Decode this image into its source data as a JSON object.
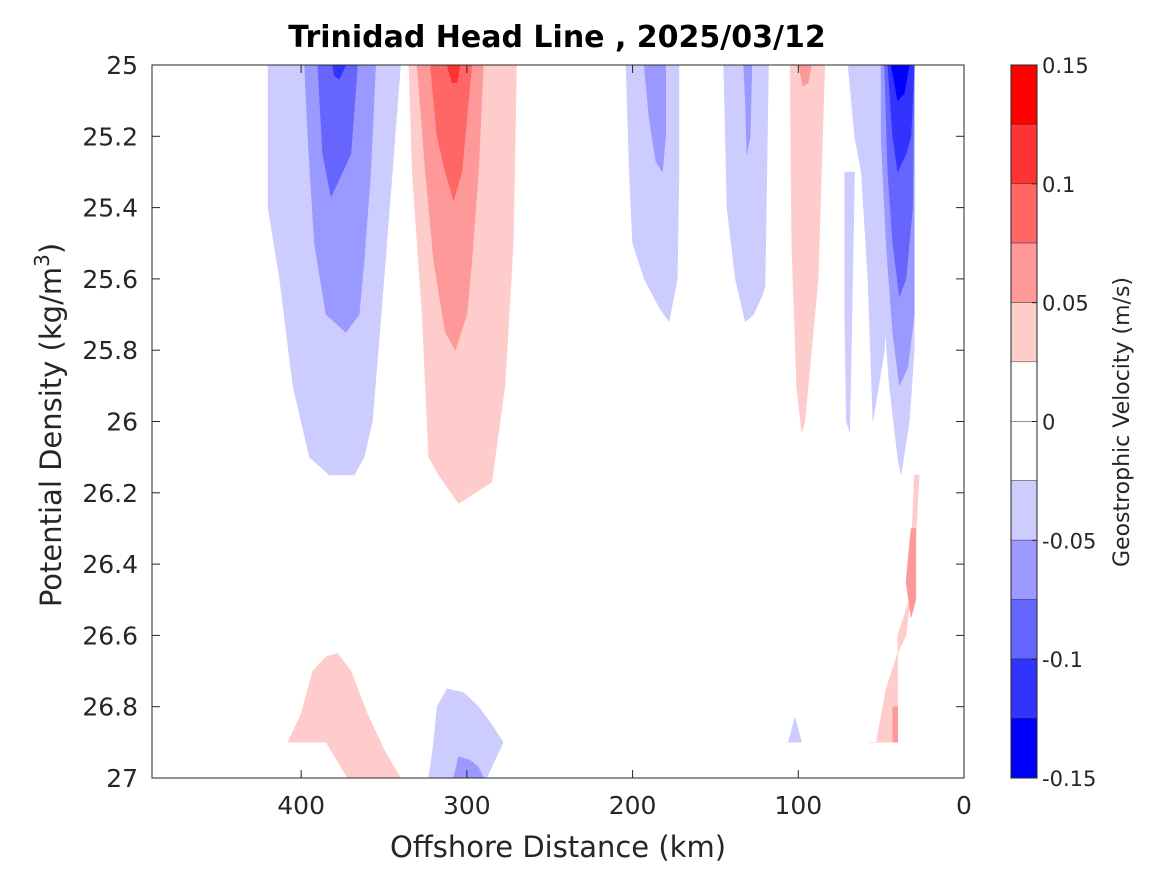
{
  "chart_data": {
    "type": "contour",
    "title": "Trinidad Head Line , 2025/03/12",
    "xlabel": "Offshore Distance (km)",
    "ylabel": "Potential Density (kg/m",
    "ylabel_sup": "3",
    "ylabel_suffix": ")",
    "xlim": [
      490,
      0
    ],
    "ylim": [
      25,
      27
    ],
    "x_reversed": true,
    "y_reversed": true,
    "xticks": [
      400,
      300,
      200,
      100,
      0
    ],
    "xtick_labels": [
      "400",
      "300",
      "200",
      "100",
      "0"
    ],
    "yticks": [
      25,
      25.2,
      25.4,
      25.6,
      25.8,
      26,
      26.2,
      26.4,
      26.6,
      26.8,
      27
    ],
    "ytick_labels": [
      "25",
      "25.2",
      "25.4",
      "25.6",
      "25.8",
      "26",
      "26.2",
      "26.4",
      "26.6",
      "26.8",
      "27"
    ],
    "colorbar": {
      "label": "Geostrophic Velocity (m/s)",
      "range": [
        -0.15,
        0.15
      ],
      "ticks": [
        0.15,
        0.1,
        0.05,
        0,
        -0.05,
        -0.1,
        -0.15
      ],
      "tick_labels": [
        "0.15",
        "0.1",
        "0.05",
        "0",
        "-0.05",
        "-0.1",
        "-0.15"
      ],
      "levels": [
        {
          "min": 0.125,
          "max": 0.15,
          "color": "#ff0000"
        },
        {
          "min": 0.1,
          "max": 0.125,
          "color": "#ff3333"
        },
        {
          "min": 0.075,
          "max": 0.1,
          "color": "#ff6666"
        },
        {
          "min": 0.05,
          "max": 0.075,
          "color": "#ff9999"
        },
        {
          "min": 0.025,
          "max": 0.05,
          "color": "#ffcccc"
        },
        {
          "min": 0,
          "max": 0.025,
          "color": "#ffffff"
        },
        {
          "min": -0.025,
          "max": 0,
          "color": "#ffffff"
        },
        {
          "min": -0.05,
          "max": -0.025,
          "color": "#ccccff"
        },
        {
          "min": -0.075,
          "max": -0.05,
          "color": "#9999ff"
        },
        {
          "min": -0.1,
          "max": -0.075,
          "color": "#6666ff"
        },
        {
          "min": -0.125,
          "max": -0.1,
          "color": "#3333ff"
        },
        {
          "min": -0.15,
          "max": -0.125,
          "color": "#0000ff"
        }
      ]
    },
    "regions": [
      {
        "name": "offshore-jet-negative-l1",
        "level": -0.05,
        "color": "#ccccff",
        "points": [
          [
            420,
            25
          ],
          [
            340,
            25
          ],
          [
            345,
            25.3
          ],
          [
            350,
            25.6
          ],
          [
            357,
            26
          ],
          [
            362,
            26.1
          ],
          [
            368,
            26.15
          ],
          [
            383,
            26.15
          ],
          [
            395,
            26.1
          ],
          [
            405,
            25.9
          ],
          [
            413,
            25.6
          ],
          [
            420,
            25.4
          ]
        ]
      },
      {
        "name": "offshore-jet-negative-l2",
        "level": -0.075,
        "color": "#9999ff",
        "points": [
          [
            398,
            25
          ],
          [
            355,
            25
          ],
          [
            358,
            25.3
          ],
          [
            362,
            25.55
          ],
          [
            365,
            25.7
          ],
          [
            373,
            25.75
          ],
          [
            385,
            25.7
          ],
          [
            392,
            25.5
          ],
          [
            396,
            25.2
          ]
        ]
      },
      {
        "name": "offshore-jet-negative-l3",
        "level": -0.1,
        "color": "#6666ff",
        "points": [
          [
            390,
            25
          ],
          [
            366,
            25
          ],
          [
            370,
            25.25
          ],
          [
            375,
            25.3
          ],
          [
            382,
            25.37
          ],
          [
            387,
            25.25
          ]
        ]
      },
      {
        "name": "offshore-jet-negative-l4",
        "level": -0.125,
        "color": "#3333ff",
        "points": [
          [
            381,
            25
          ],
          [
            373,
            25
          ],
          [
            377,
            25.04
          ],
          [
            380,
            25.03
          ]
        ]
      },
      {
        "name": "jet-positive-l1",
        "level": 0.05,
        "color": "#ffcccc",
        "points": [
          [
            335,
            25
          ],
          [
            270,
            25
          ],
          [
            272,
            25.5
          ],
          [
            277,
            25.9
          ],
          [
            285,
            26.17
          ],
          [
            295,
            26.2
          ],
          [
            305,
            26.23
          ],
          [
            317,
            26.15
          ],
          [
            323,
            26.1
          ],
          [
            327,
            25.7
          ],
          [
            333,
            25.3
          ]
        ]
      },
      {
        "name": "jet-positive-l2",
        "level": 0.075,
        "color": "#ff9999",
        "points": [
          [
            330,
            25
          ],
          [
            290,
            25
          ],
          [
            293,
            25.3
          ],
          [
            297,
            25.55
          ],
          [
            300,
            25.7
          ],
          [
            307,
            25.8
          ],
          [
            313,
            25.75
          ],
          [
            320,
            25.55
          ],
          [
            325,
            25.3
          ]
        ]
      },
      {
        "name": "jet-positive-l3",
        "level": 0.1,
        "color": "#ff6666",
        "points": [
          [
            322,
            25
          ],
          [
            297,
            25
          ],
          [
            300,
            25.15
          ],
          [
            303,
            25.3
          ],
          [
            308,
            25.38
          ],
          [
            313,
            25.3
          ],
          [
            318,
            25.2
          ]
        ]
      },
      {
        "name": "jet-positive-l4",
        "level": 0.125,
        "color": "#ff3333",
        "points": [
          [
            312,
            25
          ],
          [
            304,
            25
          ],
          [
            306,
            25.05
          ],
          [
            309,
            25.05
          ]
        ]
      },
      {
        "name": "mid-negative-l1",
        "level": -0.05,
        "color": "#ccccff",
        "points": [
          [
            204,
            25
          ],
          [
            172,
            25
          ],
          [
            172,
            25.3
          ],
          [
            173,
            25.6
          ],
          [
            178,
            25.72
          ],
          [
            184,
            25.68
          ],
          [
            193,
            25.6
          ],
          [
            200,
            25.5
          ],
          [
            202,
            25.3
          ]
        ]
      },
      {
        "name": "mid-negative-l2",
        "level": -0.075,
        "color": "#9999ff",
        "points": [
          [
            193,
            25
          ],
          [
            180,
            25
          ],
          [
            180,
            25.2
          ],
          [
            182,
            25.3
          ],
          [
            186,
            25.27
          ],
          [
            190,
            25.15
          ]
        ]
      },
      {
        "name": "inner-negative-l1",
        "level": -0.05,
        "color": "#ccccff",
        "points": [
          [
            145,
            25
          ],
          [
            118,
            25
          ],
          [
            120,
            25.62
          ],
          [
            122,
            25.65
          ],
          [
            127,
            25.7
          ],
          [
            132,
            25.72
          ],
          [
            138,
            25.6
          ],
          [
            143,
            25.4
          ]
        ]
      },
      {
        "name": "inner-negative-l2",
        "level": -0.075,
        "color": "#9999ff",
        "points": [
          [
            133,
            25
          ],
          [
            128,
            25
          ],
          [
            129,
            25.2
          ],
          [
            131,
            25.25
          ],
          [
            132,
            25.1
          ]
        ]
      },
      {
        "name": "shelf-positive-l1",
        "level": 0.05,
        "color": "#ffcccc",
        "points": [
          [
            105,
            25
          ],
          [
            84,
            25
          ],
          [
            86,
            25.3
          ],
          [
            88,
            25.6
          ],
          [
            92,
            25.8
          ],
          [
            96,
            26
          ],
          [
            98,
            26.03
          ],
          [
            101,
            25.9
          ],
          [
            104,
            25.5
          ]
        ]
      },
      {
        "name": "shelf-positive-l2",
        "level": 0.075,
        "color": "#ff9999",
        "points": [
          [
            100,
            25
          ],
          [
            92,
            25
          ],
          [
            94,
            25.05
          ],
          [
            97,
            25.06
          ]
        ]
      },
      {
        "name": "nearshore-negative-l1a",
        "level": -0.05,
        "color": "#ccccff",
        "points": [
          [
            70,
            25
          ],
          [
            42,
            25
          ],
          [
            45,
            25.3
          ],
          [
            48,
            25.8
          ],
          [
            55,
            26
          ],
          [
            58,
            25.6
          ],
          [
            62,
            25.3
          ],
          [
            66,
            25.2
          ]
        ]
      },
      {
        "name": "nearshore-negative-l1b",
        "level": -0.05,
        "color": "#ccccff",
        "points": [
          [
            72,
            25.3
          ],
          [
            66,
            25.3
          ],
          [
            68,
            25.8
          ],
          [
            69,
            26.03
          ],
          [
            71,
            26.0
          ],
          [
            72,
            25.7
          ]
        ]
      },
      {
        "name": "nearshore-negative-l1c",
        "level": -0.05,
        "color": "#ccccff",
        "points": [
          [
            52,
            25
          ],
          [
            30,
            25
          ],
          [
            30,
            25.8
          ],
          [
            33,
            26.0
          ],
          [
            38,
            26.15
          ],
          [
            40,
            26.1
          ],
          [
            45,
            25.9
          ],
          [
            50,
            25.6
          ],
          [
            52,
            25.2
          ]
        ]
      },
      {
        "name": "nearshore-negative-l2",
        "level": -0.075,
        "color": "#9999ff",
        "points": [
          [
            50,
            25
          ],
          [
            30,
            25
          ],
          [
            30,
            25.7
          ],
          [
            34,
            25.85
          ],
          [
            39,
            25.9
          ],
          [
            43,
            25.75
          ],
          [
            47,
            25.5
          ],
          [
            50,
            25.2
          ]
        ]
      },
      {
        "name": "nearshore-negative-l3",
        "level": -0.1,
        "color": "#6666ff",
        "points": [
          [
            48,
            25
          ],
          [
            30,
            25
          ],
          [
            31,
            25.4
          ],
          [
            35,
            25.6
          ],
          [
            39,
            25.65
          ],
          [
            43,
            25.5
          ],
          [
            46,
            25.3
          ]
        ]
      },
      {
        "name": "nearshore-negative-l4",
        "level": -0.125,
        "color": "#3333ff",
        "points": [
          [
            46,
            25
          ],
          [
            30,
            25
          ],
          [
            32,
            25.2
          ],
          [
            35,
            25.25
          ],
          [
            40,
            25.3
          ],
          [
            43,
            25.2
          ]
        ]
      },
      {
        "name": "nearshore-negative-l5",
        "level": -0.15,
        "color": "#0000ff",
        "points": [
          [
            44,
            25
          ],
          [
            33,
            25
          ],
          [
            36,
            25.08
          ],
          [
            40,
            25.1
          ],
          [
            42,
            25.05
          ]
        ]
      },
      {
        "name": "deep-coastal-positive-l1",
        "level": 0.05,
        "color": "#ffcccc",
        "points": [
          [
            30,
            26.15
          ],
          [
            27,
            26.15
          ],
          [
            30,
            26.4
          ],
          [
            35,
            26.6
          ],
          [
            40,
            26.65
          ],
          [
            47,
            26.75
          ],
          [
            53,
            26.9
          ],
          [
            57,
            26.9
          ],
          [
            40,
            26.9
          ],
          [
            40,
            26.6
          ],
          [
            33,
            26.5
          ]
        ]
      },
      {
        "name": "deep-coastal-positive-l2",
        "level": 0.075,
        "color": "#ff9999",
        "points": [
          [
            32,
            26.3
          ],
          [
            29,
            26.3
          ],
          [
            29,
            26.5
          ],
          [
            32,
            26.55
          ],
          [
            35,
            26.45
          ]
        ]
      },
      {
        "name": "deep-coastal-positive-l3",
        "level": 0.075,
        "color": "#ff9999",
        "points": [
          [
            43,
            26.8
          ],
          [
            40,
            26.8
          ],
          [
            40,
            26.9
          ],
          [
            43,
            26.9
          ]
        ]
      },
      {
        "name": "deep-offshore-positive-l1",
        "level": 0.05,
        "color": "#ffcccc",
        "points": [
          [
            408,
            26.9
          ],
          [
            400,
            26.82
          ],
          [
            393,
            26.7
          ],
          [
            385,
            26.66
          ],
          [
            378,
            26.65
          ],
          [
            370,
            26.7
          ],
          [
            360,
            26.82
          ],
          [
            350,
            26.92
          ],
          [
            340,
            27
          ],
          [
            372,
            27
          ],
          [
            385,
            26.9
          ]
        ]
      },
      {
        "name": "deep-mid-negative-l1",
        "level": -0.05,
        "color": "#ccccff",
        "points": [
          [
            323,
            27
          ],
          [
            320,
            26.9
          ],
          [
            318,
            26.8
          ],
          [
            312,
            26.75
          ],
          [
            302,
            26.76
          ],
          [
            293,
            26.8
          ],
          [
            285,
            26.85
          ],
          [
            278,
            26.9
          ],
          [
            288,
            27
          ]
        ]
      },
      {
        "name": "deep-mid-negative-l2",
        "level": -0.075,
        "color": "#9999ff",
        "points": [
          [
            308,
            27
          ],
          [
            305,
            26.94
          ],
          [
            298,
            26.95
          ],
          [
            293,
            26.97
          ],
          [
            290,
            27
          ]
        ]
      },
      {
        "name": "deep-shelf-negative-l1",
        "level": -0.05,
        "color": "#ccccff",
        "points": [
          [
            106,
            26.9
          ],
          [
            102,
            26.83
          ],
          [
            98,
            26.9
          ]
        ]
      }
    ]
  }
}
